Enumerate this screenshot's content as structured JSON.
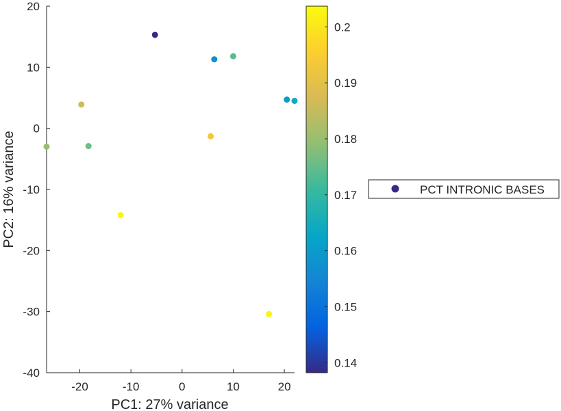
{
  "chart_data": {
    "type": "scatter",
    "xlabel": "PC1: 27% variance",
    "ylabel": "PC2: 16% variance",
    "xlim": [
      -26.5,
      22
    ],
    "ylim": [
      -40,
      20
    ],
    "xticks": [
      -20,
      -10,
      0,
      10,
      20
    ],
    "yticks": [
      20,
      10,
      0,
      -10,
      -20,
      -30,
      -40
    ],
    "points": [
      {
        "x": -5.3,
        "y": 15.3,
        "value": 0.138
      },
      {
        "x": 6.3,
        "y": 11.3,
        "value": 0.157
      },
      {
        "x": 10.0,
        "y": 11.8,
        "value": 0.174
      },
      {
        "x": 20.5,
        "y": 4.7,
        "value": 0.16
      },
      {
        "x": 22.0,
        "y": 4.5,
        "value": 0.164
      },
      {
        "x": -19.7,
        "y": 3.9,
        "value": 0.186
      },
      {
        "x": 5.6,
        "y": -1.3,
        "value": 0.193
      },
      {
        "x": -26.5,
        "y": -3.0,
        "value": 0.18
      },
      {
        "x": -18.3,
        "y": -2.9,
        "value": 0.176
      },
      {
        "x": -12.0,
        "y": -14.2,
        "value": 0.203
      },
      {
        "x": 17.0,
        "y": -30.4,
        "value": 0.203
      }
    ],
    "colorbar": {
      "colormap": "parula",
      "range": [
        0.1382,
        0.2037
      ],
      "ticks": [
        0.14,
        0.15,
        0.16,
        0.17,
        0.18,
        0.19,
        0.2
      ],
      "tick_labels": [
        "0.14",
        "0.15",
        "0.16",
        "0.17",
        "0.18",
        "0.19",
        "0.2"
      ]
    },
    "legend": {
      "placement": "right",
      "entries": [
        {
          "label": "PCT INTRONIC BASES",
          "color": "#352a87"
        }
      ]
    },
    "grid": false
  },
  "colors": {
    "axis": "#262626",
    "marker_legend": "#352a87",
    "colormap_stops": [
      "#352a87",
      "#0363e1",
      "#1485d4",
      "#06a7c6",
      "#38b99e",
      "#92bf73",
      "#d9ba56",
      "#fcce2e",
      "#f9fb0e"
    ]
  }
}
